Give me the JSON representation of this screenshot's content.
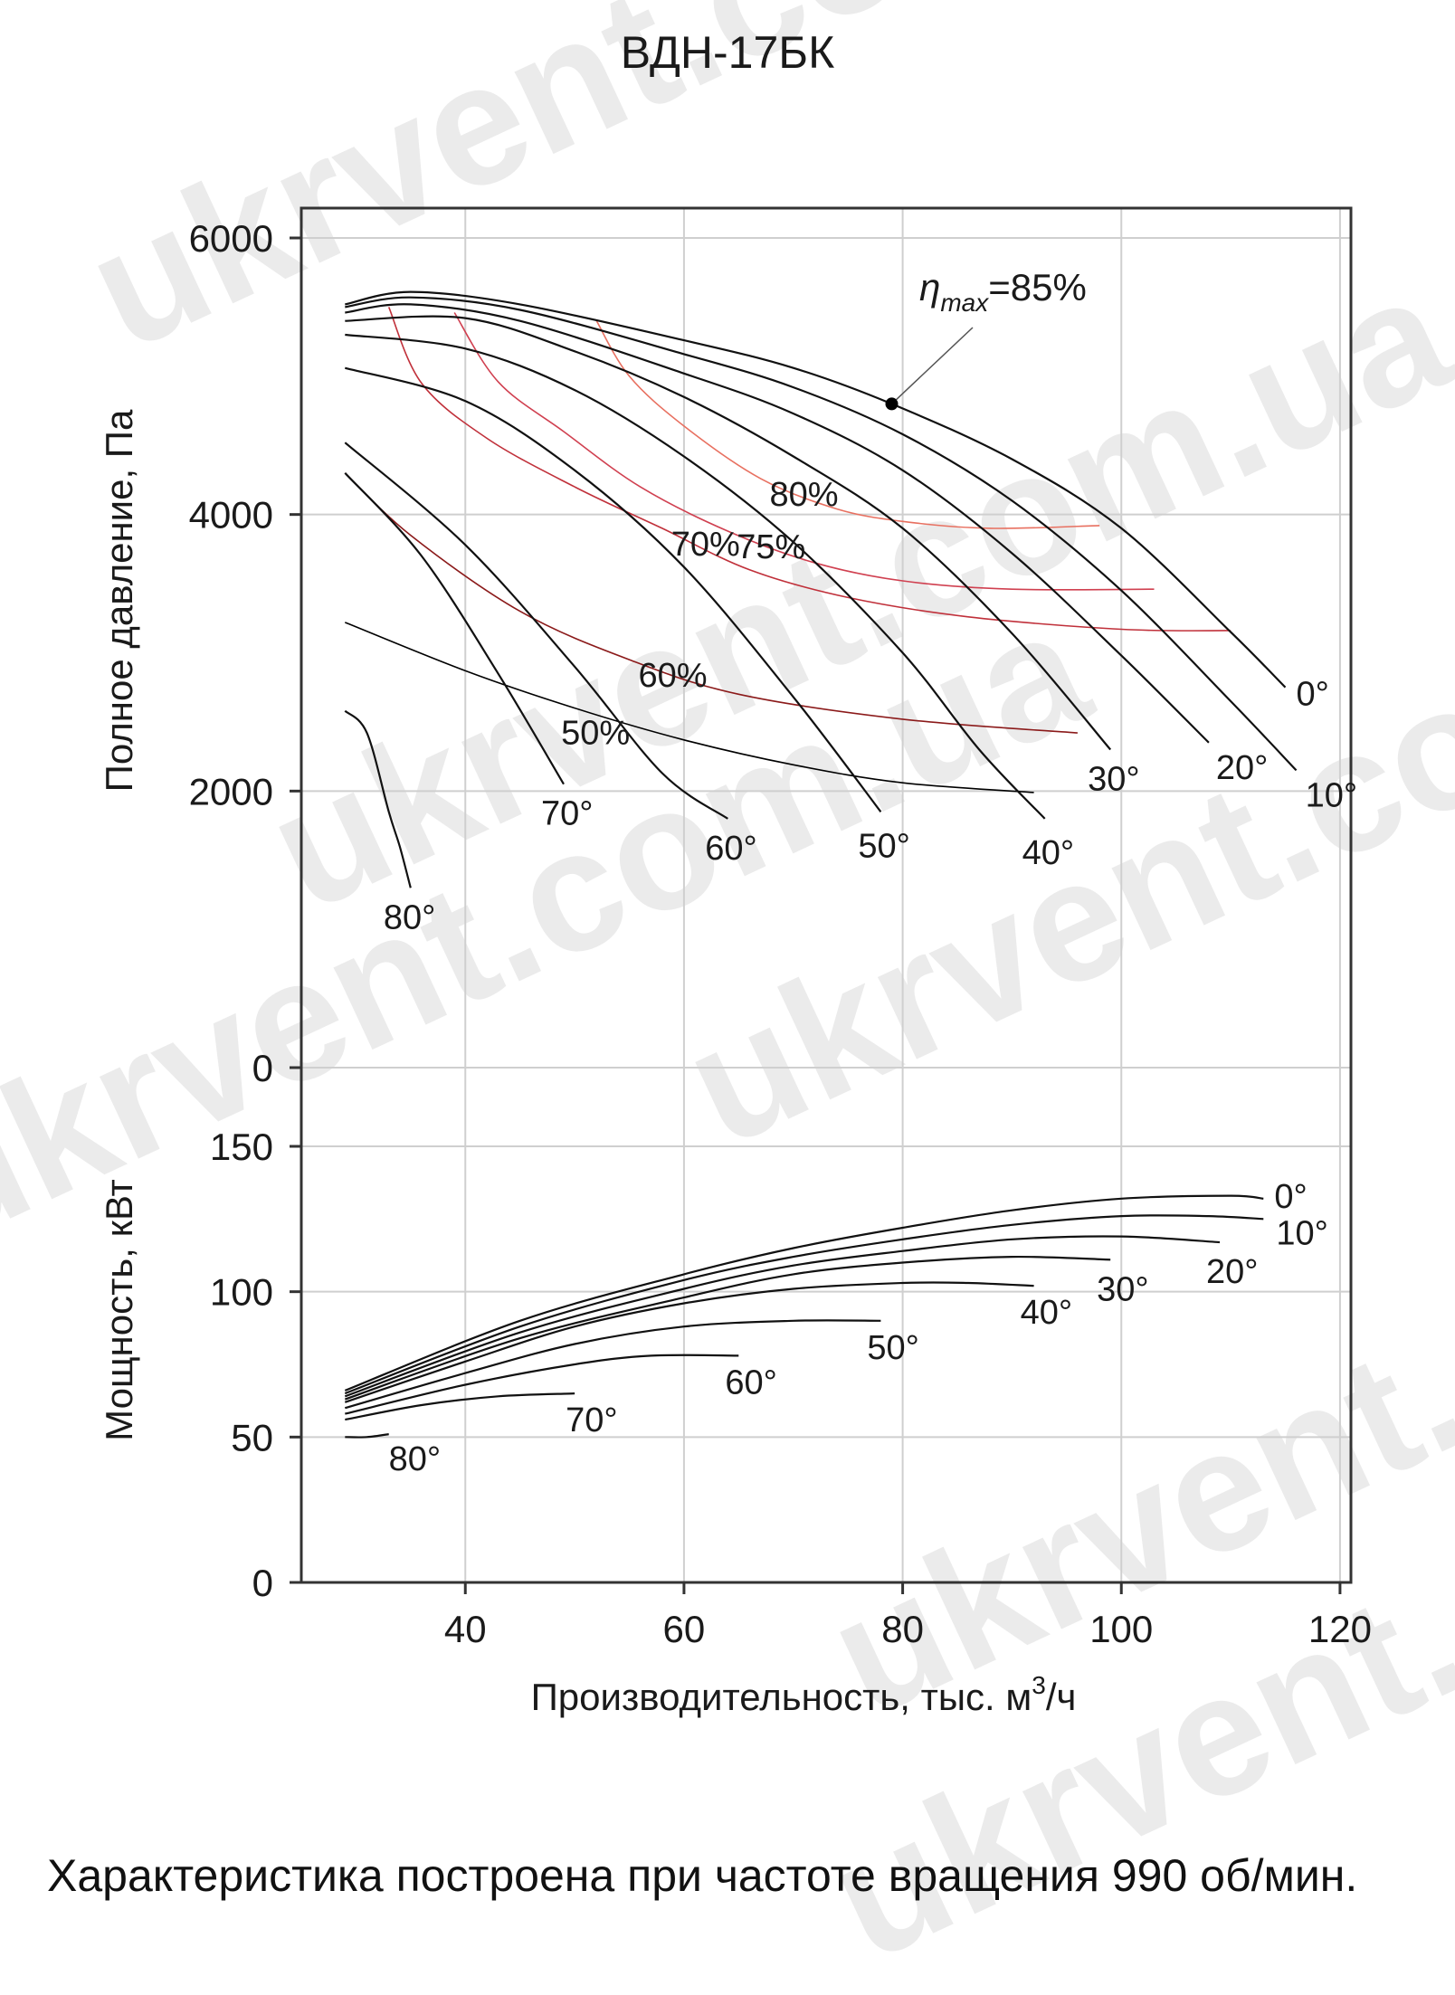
{
  "chart_data": {
    "type": "line",
    "title": "ВДН-17БК",
    "xlabel": "Производительность, тыс. м",
    "xlabel_sup": "3",
    "xlabel_tail": "/ч",
    "xlim": [
      25,
      121
    ],
    "xticks": [
      40,
      60,
      80,
      100,
      120
    ],
    "pressure_panel": {
      "ylabel": "Полное давление, Па",
      "ylim": [
        0,
        6200
      ],
      "yticks": [
        0,
        2000,
        4000,
        6000
      ],
      "series": [
        {
          "name": "0°",
          "points": [
            [
              29,
              5520
            ],
            [
              35,
              5610
            ],
            [
              45,
              5520
            ],
            [
              60,
              5260
            ],
            [
              70,
              5060
            ],
            [
              79,
              4800
            ],
            [
              90,
              4400
            ],
            [
              100,
              3900
            ],
            [
              110,
              3150
            ],
            [
              115,
              2750
            ]
          ]
        },
        {
          "name": "10°",
          "points": [
            [
              29,
              5500
            ],
            [
              35,
              5570
            ],
            [
              45,
              5480
            ],
            [
              60,
              5160
            ],
            [
              70,
              4920
            ],
            [
              80,
              4580
            ],
            [
              90,
              4100
            ],
            [
              100,
              3450
            ],
            [
              110,
              2650
            ],
            [
              116,
              2150
            ]
          ]
        },
        {
          "name": "20°",
          "points": [
            [
              29,
              5460
            ],
            [
              35,
              5520
            ],
            [
              45,
              5400
            ],
            [
              60,
              5020
            ],
            [
              70,
              4730
            ],
            [
              80,
              4320
            ],
            [
              90,
              3720
            ],
            [
              100,
              2980
            ],
            [
              108,
              2350
            ]
          ]
        },
        {
          "name": "30°",
          "points": [
            [
              29,
              5400
            ],
            [
              40,
              5420
            ],
            [
              50,
              5180
            ],
            [
              60,
              4850
            ],
            [
              70,
              4420
            ],
            [
              80,
              3900
            ],
            [
              90,
              3140
            ],
            [
              99,
              2300
            ]
          ]
        },
        {
          "name": "40°",
          "points": [
            [
              29,
              5300
            ],
            [
              40,
              5200
            ],
            [
              50,
              4900
            ],
            [
              60,
              4420
            ],
            [
              70,
              3800
            ],
            [
              80,
              3000
            ],
            [
              87,
              2300
            ],
            [
              93,
              1800
            ]
          ]
        },
        {
          "name": "50°",
          "points": [
            [
              29,
              5060
            ],
            [
              40,
              4820
            ],
            [
              50,
              4320
            ],
            [
              60,
              3620
            ],
            [
              70,
              2680
            ],
            [
              78,
              1850
            ]
          ]
        },
        {
          "name": "60°",
          "points": [
            [
              29,
              4520
            ],
            [
              40,
              3780
            ],
            [
              50,
              2900
            ],
            [
              58,
              2130
            ],
            [
              64,
              1800
            ]
          ]
        },
        {
          "name": "70°",
          "points": [
            [
              29,
              4300
            ],
            [
              36,
              3700
            ],
            [
              43,
              2850
            ],
            [
              49,
              2050
            ]
          ]
        },
        {
          "name": "80°",
          "points": [
            [
              29,
              2580
            ],
            [
              31,
              2420
            ],
            [
              33,
              1850
            ],
            [
              34,
              1600
            ],
            [
              35,
              1300
            ]
          ]
        }
      ],
      "efficiency": [
        {
          "name": "50%",
          "color": "#000000",
          "points": [
            [
              29,
              3220
            ],
            [
              40,
              2870
            ],
            [
              50,
              2600
            ],
            [
              60,
              2370
            ],
            [
              70,
              2190
            ],
            [
              80,
              2060
            ],
            [
              92,
              1990
            ]
          ]
        },
        {
          "name": "60%",
          "color": "#8b1a1a",
          "points": [
            [
              29,
              4300
            ],
            [
              35,
              3850
            ],
            [
              45,
              3300
            ],
            [
              55,
              2950
            ],
            [
              65,
              2700
            ],
            [
              80,
              2520
            ],
            [
              96,
              2420
            ]
          ]
        },
        {
          "name": "70%",
          "color": "#c0303a",
          "points": [
            [
              33,
              5500
            ],
            [
              36,
              4950
            ],
            [
              42,
              4550
            ],
            [
              50,
              4200
            ],
            [
              58,
              3900
            ],
            [
              66,
              3600
            ],
            [
              75,
              3400
            ],
            [
              86,
              3260
            ],
            [
              100,
              3170
            ],
            [
              110,
              3160
            ]
          ]
        },
        {
          "name": "75%",
          "color": "#d04050",
          "points": [
            [
              39,
              5460
            ],
            [
              43,
              4960
            ],
            [
              49,
              4600
            ],
            [
              56,
              4200
            ],
            [
              64,
              3880
            ],
            [
              72,
              3650
            ],
            [
              80,
              3520
            ],
            [
              90,
              3460
            ],
            [
              103,
              3460
            ]
          ]
        },
        {
          "name": "80%",
          "color": "#e87060",
          "points": [
            [
              52,
              5400
            ],
            [
              55,
              5000
            ],
            [
              60,
              4640
            ],
            [
              67,
              4260
            ],
            [
              74,
              4040
            ],
            [
              80,
              3950
            ],
            [
              88,
              3900
            ],
            [
              98,
              3920
            ]
          ]
        }
      ],
      "eta_max_point": {
        "x": 79,
        "y": 4800
      },
      "eta_max_label_prefix": "η",
      "eta_max_label_sub": "max",
      "eta_max_label_value": "=85%"
    },
    "power_panel": {
      "ylabel": "Мощность, кВт",
      "ylim": [
        0,
        150
      ],
      "yticks": [
        0,
        50,
        100,
        150
      ],
      "series": [
        {
          "name": "0°",
          "points": [
            [
              29,
              66
            ],
            [
              45,
              90
            ],
            [
              60,
              106
            ],
            [
              70,
              115
            ],
            [
              80,
              122
            ],
            [
              90,
              128
            ],
            [
              100,
              132
            ],
            [
              110,
              133
            ],
            [
              113,
              132
            ]
          ]
        },
        {
          "name": "10°",
          "points": [
            [
              29,
              65
            ],
            [
              45,
              88
            ],
            [
              60,
              104
            ],
            [
              70,
              112
            ],
            [
              80,
              118
            ],
            [
              90,
              123
            ],
            [
              100,
              126
            ],
            [
              108,
              126
            ],
            [
              113,
              125
            ]
          ]
        },
        {
          "name": "20°",
          "points": [
            [
              29,
              64
            ],
            [
              45,
              86
            ],
            [
              60,
              101
            ],
            [
              70,
              109
            ],
            [
              80,
              114
            ],
            [
              90,
              118
            ],
            [
              100,
              119
            ],
            [
              109,
              117
            ]
          ]
        },
        {
          "name": "30°",
          "points": [
            [
              29,
              63
            ],
            [
              45,
              84
            ],
            [
              60,
              98
            ],
            [
              70,
              106
            ],
            [
              80,
              110
            ],
            [
              90,
              112
            ],
            [
              99,
              111
            ]
          ]
        },
        {
          "name": "40°",
          "points": [
            [
              29,
              62
            ],
            [
              40,
              76
            ],
            [
              50,
              88
            ],
            [
              60,
              96
            ],
            [
              70,
              101
            ],
            [
              80,
              103
            ],
            [
              86,
              103
            ],
            [
              92,
              102
            ]
          ]
        },
        {
          "name": "50°",
          "points": [
            [
              29,
              60
            ],
            [
              40,
              72
            ],
            [
              50,
              82
            ],
            [
              60,
              88
            ],
            [
              70,
              90
            ],
            [
              78,
              90
            ]
          ]
        },
        {
          "name": "60°",
          "points": [
            [
              29,
              58
            ],
            [
              40,
              68
            ],
            [
              50,
              75
            ],
            [
              57,
              78
            ],
            [
              65,
              78
            ]
          ]
        },
        {
          "name": "70°",
          "points": [
            [
              29,
              56
            ],
            [
              36,
              61
            ],
            [
              43,
              64
            ],
            [
              50,
              65
            ]
          ]
        },
        {
          "name": "80°",
          "points": [
            [
              29,
              50
            ],
            [
              31,
              50
            ],
            [
              33,
              51
            ]
          ]
        }
      ]
    }
  },
  "watermark": "ukrvent.com.ua",
  "note": "Характеристика построена при частоте вращения 990 об/мин."
}
